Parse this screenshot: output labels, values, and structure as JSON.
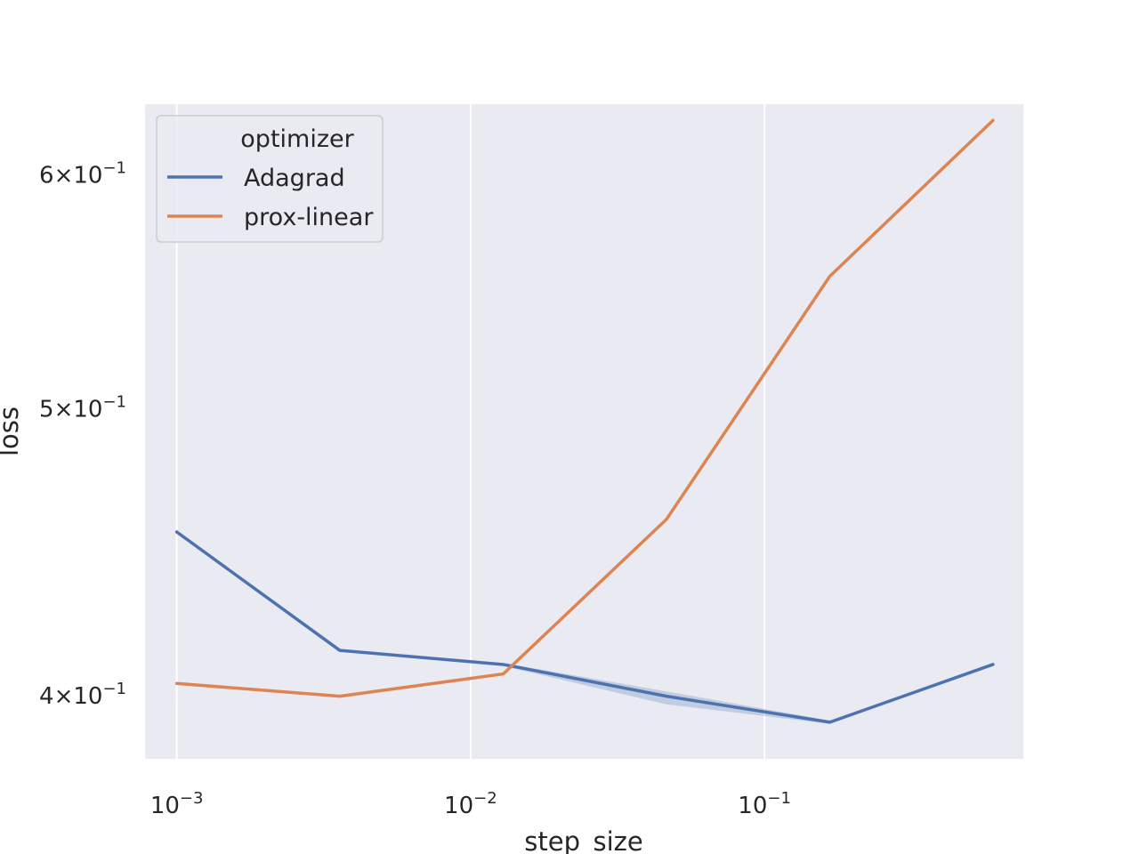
{
  "chart_data": {
    "type": "line",
    "xlabel": "step_size",
    "ylabel": "loss",
    "xscale": "log",
    "yscale": "log",
    "xlim": [
      0.00078,
      0.76
    ],
    "ylim": [
      0.3805,
      0.6335
    ],
    "grid": true,
    "x_ticks": [
      {
        "base": "10",
        "exp": "−3"
      },
      {
        "base": "10",
        "exp": "−2"
      },
      {
        "base": "10",
        "exp": "−1"
      }
    ],
    "y_ticks": [
      {
        "mant": "4",
        "exp": "−1"
      },
      {
        "mant": "5",
        "exp": "−1"
      },
      {
        "mant": "6",
        "exp": "−1"
      }
    ],
    "legend": {
      "title": "optimizer",
      "position": "upper left"
    },
    "x": [
      0.001,
      0.00359,
      0.01292,
      0.0464,
      0.1668,
      0.599
    ],
    "series": [
      {
        "name": "Adagrad",
        "color": "#4c72b0",
        "values": [
          0.454,
          0.414,
          0.4095,
          0.3995,
          0.3915,
          0.4095
        ],
        "band_low": [
          0.454,
          0.414,
          0.409,
          0.397,
          0.391,
          0.4095
        ],
        "band_high": [
          0.454,
          0.414,
          0.41,
          0.401,
          0.392,
          0.4095
        ]
      },
      {
        "name": "prox-linear",
        "color": "#dd8452",
        "values": [
          0.4035,
          0.3995,
          0.4065,
          0.4585,
          0.554,
          0.6255
        ],
        "band_low": [
          0.4035,
          0.399,
          0.4065,
          0.4585,
          0.554,
          0.6255
        ],
        "band_high": [
          0.4035,
          0.4,
          0.4065,
          0.4585,
          0.554,
          0.6255
        ]
      }
    ]
  }
}
